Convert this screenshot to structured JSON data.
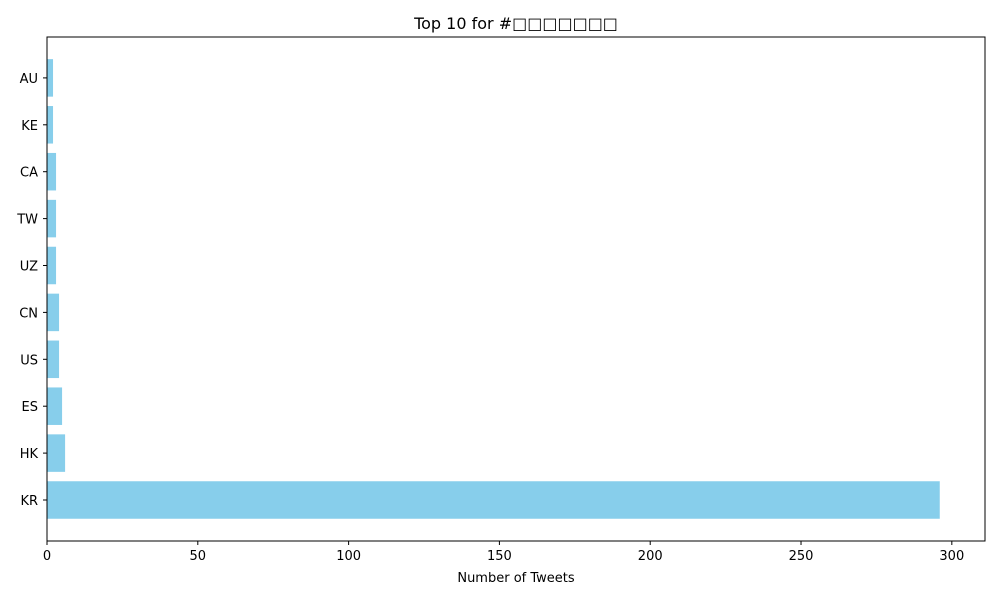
{
  "chart_data": {
    "type": "bar",
    "orientation": "horizontal",
    "title": "Top 10 for #□□□□□□□",
    "xlabel": "Number of Tweets",
    "ylabel": "",
    "categories": [
      "KR",
      "HK",
      "ES",
      "US",
      "CN",
      "UZ",
      "TW",
      "CA",
      "KE",
      "AU"
    ],
    "values": [
      296,
      6,
      5,
      4,
      4,
      3,
      3,
      3,
      2,
      2
    ],
    "xlim": [
      0,
      311
    ],
    "xticks": [
      "0",
      "50",
      "100",
      "150",
      "200",
      "250",
      "300"
    ],
    "bar_color": "#87CEEB",
    "grid": false,
    "legend": "none"
  }
}
